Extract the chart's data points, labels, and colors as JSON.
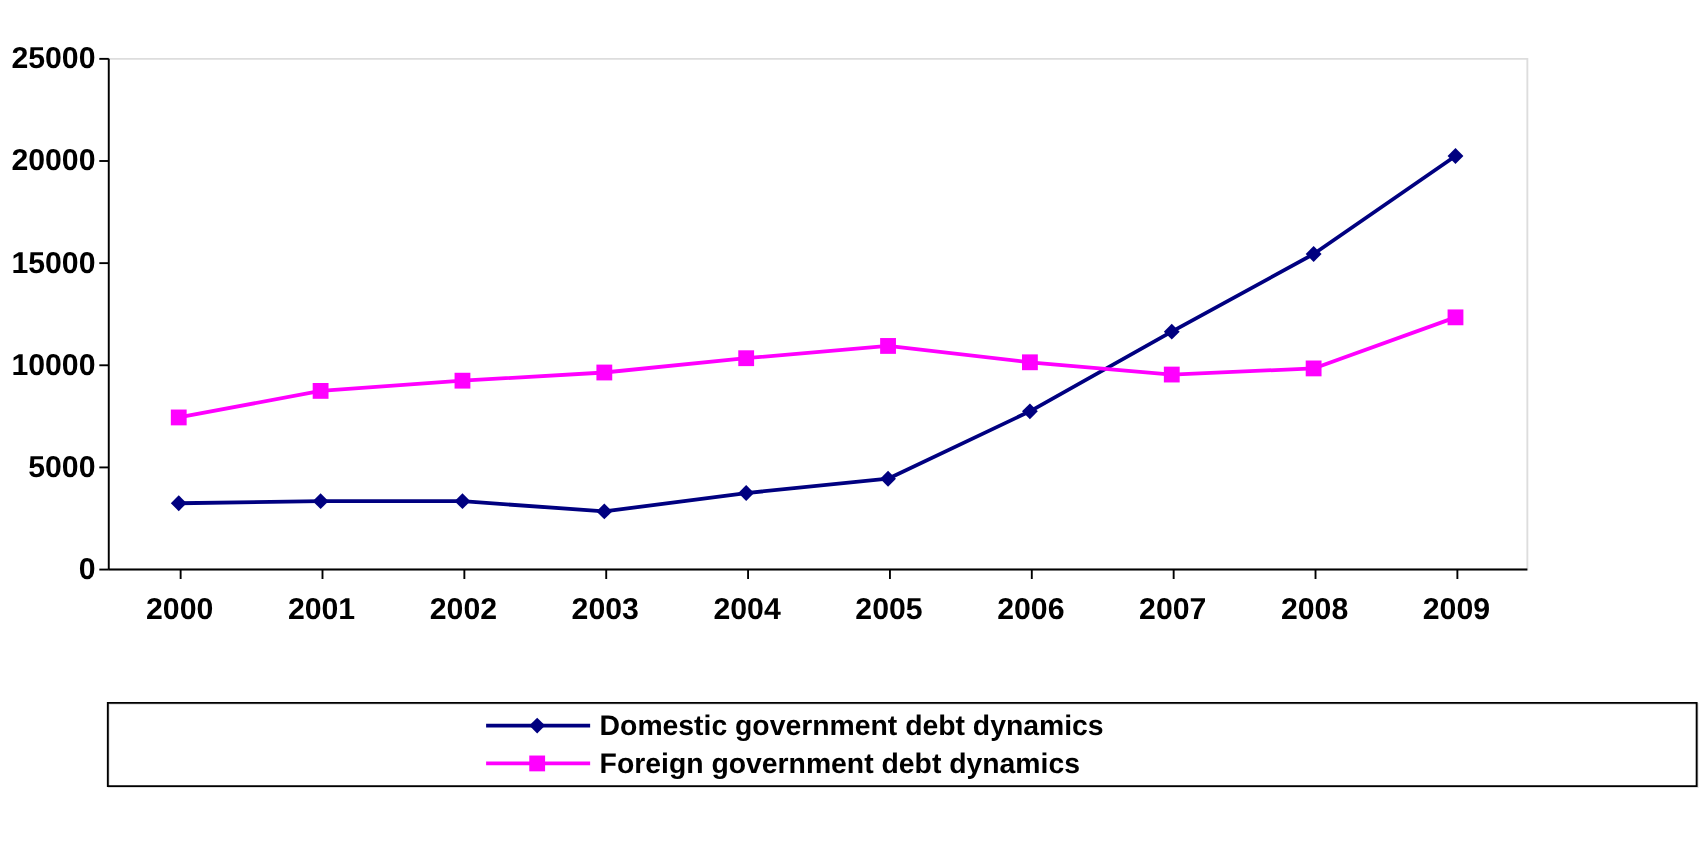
{
  "chart_data": {
    "type": "line",
    "categories": [
      "2000",
      "2001",
      "2002",
      "2003",
      "2004",
      "2005",
      "2006",
      "2007",
      "2008",
      "2009"
    ],
    "series": [
      {
        "name": "Domestic government debt dynamics",
        "color": "#000080",
        "marker": "diamond",
        "values": [
          3200,
          3300,
          3300,
          2800,
          3700,
          4400,
          7700,
          11600,
          15400,
          20200
        ]
      },
      {
        "name": "Foreign government debt dynamics",
        "color": "#ff00ff",
        "marker": "square",
        "values": [
          7400,
          8700,
          9200,
          9600,
          10300,
          10900,
          10100,
          9500,
          9800,
          12300
        ]
      }
    ],
    "ylim": [
      0,
      25000
    ],
    "yticks": [
      0,
      5000,
      10000,
      15000,
      20000,
      25000
    ],
    "grid": false,
    "legend": "bottom",
    "line_style": "solid"
  }
}
